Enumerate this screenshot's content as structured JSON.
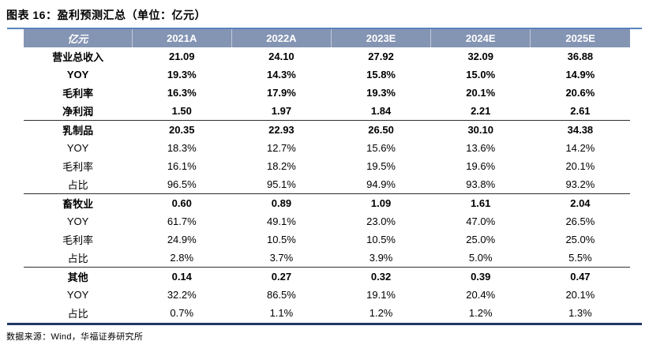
{
  "figure": {
    "title": "图表 16：盈利预测汇总（单位：亿元）",
    "source_note": "数据来源：Wind，华福证券研究所"
  },
  "colors": {
    "header_bg": "#8494B3",
    "header_text": "#FFFFFF",
    "top_rule": "#5B83BE",
    "bottom_rule": "#1F3864",
    "section_divider": "#2F2F2F",
    "body_text": "#000000"
  },
  "table": {
    "columns": [
      "亿元",
      "2021A",
      "2022A",
      "2023E",
      "2024E",
      "2025E"
    ],
    "sections": [
      {
        "name": "total",
        "rows": [
          {
            "label": "营业总收入",
            "bold": true,
            "values": [
              "21.09",
              "24.10",
              "27.92",
              "32.09",
              "36.88"
            ]
          },
          {
            "label": "YOY",
            "bold": true,
            "values": [
              "19.3%",
              "14.3%",
              "15.8%",
              "15.0%",
              "14.9%"
            ]
          },
          {
            "label": "毛利率",
            "bold": true,
            "values": [
              "16.3%",
              "17.9%",
              "19.3%",
              "20.1%",
              "20.6%"
            ]
          },
          {
            "label": "净利润",
            "bold": true,
            "values": [
              "1.50",
              "1.97",
              "1.84",
              "2.21",
              "2.61"
            ]
          }
        ]
      },
      {
        "name": "dairy",
        "rows": [
          {
            "label": "乳制品",
            "bold": true,
            "values": [
              "20.35",
              "22.93",
              "26.50",
              "30.10",
              "34.38"
            ]
          },
          {
            "label": "YOY",
            "bold": false,
            "values": [
              "18.3%",
              "12.7%",
              "15.6%",
              "13.6%",
              "14.2%"
            ]
          },
          {
            "label": "毛利率",
            "bold": false,
            "values": [
              "16.1%",
              "18.2%",
              "19.5%",
              "19.6%",
              "20.1%"
            ]
          },
          {
            "label": "占比",
            "bold": false,
            "values": [
              "96.5%",
              "95.1%",
              "94.9%",
              "93.8%",
              "93.2%"
            ]
          }
        ]
      },
      {
        "name": "livestock",
        "rows": [
          {
            "label": "畜牧业",
            "bold": true,
            "values": [
              "0.60",
              "0.89",
              "1.09",
              "1.61",
              "2.04"
            ]
          },
          {
            "label": "YOY",
            "bold": false,
            "values": [
              "61.7%",
              "49.1%",
              "23.0%",
              "47.0%",
              "26.5%"
            ]
          },
          {
            "label": "毛利率",
            "bold": false,
            "values": [
              "24.9%",
              "10.5%",
              "10.5%",
              "25.0%",
              "25.0%"
            ]
          },
          {
            "label": "占比",
            "bold": false,
            "values": [
              "2.8%",
              "3.7%",
              "3.9%",
              "5.0%",
              "5.5%"
            ]
          }
        ]
      },
      {
        "name": "other",
        "rows": [
          {
            "label": "其他",
            "bold": true,
            "values": [
              "0.14",
              "0.27",
              "0.32",
              "0.39",
              "0.47"
            ]
          },
          {
            "label": "YOY",
            "bold": false,
            "values": [
              "32.2%",
              "86.5%",
              "19.1%",
              "20.4%",
              "20.1%"
            ]
          },
          {
            "label": "占比",
            "bold": false,
            "values": [
              "0.7%",
              "1.1%",
              "1.2%",
              "1.2%",
              "1.3%"
            ]
          }
        ]
      }
    ]
  }
}
